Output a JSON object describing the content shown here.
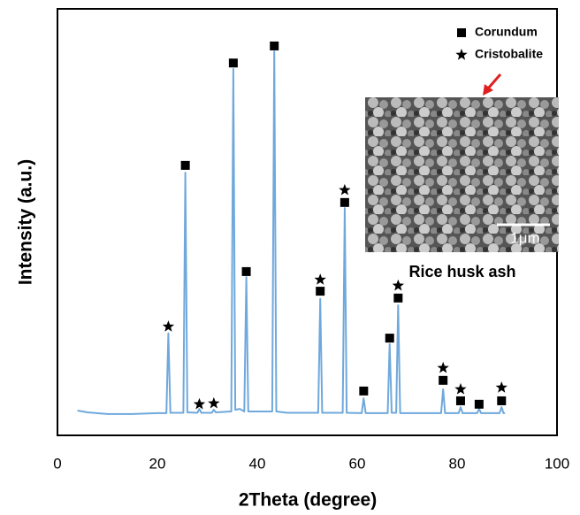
{
  "chart_data": {
    "type": "line",
    "x_label": "2Theta (degree)",
    "y_label": "Intensity (a.u.)",
    "xlim": [
      0,
      100
    ],
    "xticks": [
      0,
      20,
      40,
      60,
      80,
      100
    ],
    "ylim": [
      0,
      100
    ],
    "grid": false,
    "legend": "top-right",
    "line": {
      "color": "#6fa8dc",
      "x": [
        4,
        6,
        10,
        15,
        20,
        21.8,
        22.2,
        22.6,
        25.2,
        25.6,
        26.0,
        28.0,
        28.4,
        28.8,
        30.9,
        31.3,
        31.7,
        34.8,
        35.2,
        35.6,
        36.5,
        37.4,
        37.8,
        38.2,
        43.0,
        43.4,
        43.8,
        46,
        52.2,
        52.6,
        53.0,
        57.1,
        57.5,
        57.9,
        60.9,
        61.3,
        61.7,
        66.1,
        66.5,
        66.9,
        67.8,
        68.2,
        68.6,
        76.8,
        77.2,
        77.6,
        80.3,
        80.7,
        81.1,
        84.0,
        84.4,
        84.8,
        88.5,
        88.9,
        89.3,
        89.6
      ],
      "values": [
        5.8,
        5.4,
        5.0,
        5.0,
        5.2,
        5.2,
        23.9,
        5.3,
        5.3,
        61.6,
        5.4,
        5.3,
        6.2,
        5.3,
        5.3,
        6.0,
        5.4,
        5.6,
        85.9,
        6.0,
        6.2,
        5.6,
        37.1,
        5.6,
        5.6,
        90.0,
        5.6,
        5.3,
        5.3,
        32.0,
        5.3,
        5.3,
        53.3,
        5.3,
        5.2,
        8.7,
        5.2,
        5.2,
        21.4,
        5.3,
        5.3,
        30.5,
        5.2,
        5.2,
        10.8,
        5.2,
        5.2,
        6.6,
        5.2,
        5.2,
        6.2,
        5.2,
        5.2,
        6.6,
        5.2,
        5.2
      ]
    },
    "series": [
      {
        "name": "Corundum",
        "marker": "square",
        "color": "#000000",
        "x": [
          25.6,
          35.2,
          37.8,
          43.4,
          52.6,
          57.5,
          61.3,
          66.5,
          68.2,
          77.2,
          80.7,
          84.4,
          88.9
        ],
        "values": [
          63.3,
          87.3,
          38.4,
          91.3,
          33.8,
          54.6,
          10.4,
          22.8,
          32.2,
          12.9,
          8.1,
          7.3,
          8.1
        ]
      },
      {
        "name": "Cristobalite",
        "marker": "star",
        "color": "#000000",
        "x": [
          22.2,
          28.4,
          31.3,
          52.6,
          57.5,
          68.2,
          77.2,
          80.7,
          88.9
        ],
        "values": [
          25.5,
          7.3,
          7.5,
          36.5,
          57.5,
          35.1,
          15.8,
          10.8,
          11.2
        ]
      }
    ],
    "annotations": [
      "Rice husk ash",
      "1μm"
    ]
  }
}
